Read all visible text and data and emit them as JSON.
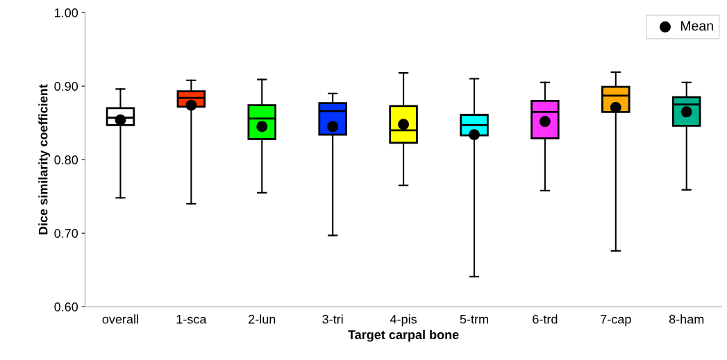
{
  "chart_data": {
    "type": "box",
    "xlabel": "Target carpal bone",
    "ylabel": "Dice similarity coefficient",
    "categories": [
      "overall",
      "1-sca",
      "2-lun",
      "3-tri",
      "4-pis",
      "5-trm",
      "6-trd",
      "7-cap",
      "8-ham"
    ],
    "colors": [
      "#ffffff",
      "#ff3300",
      "#00ff00",
      "#0033ff",
      "#ffff00",
      "#00ffff",
      "#ff33ff",
      "#ffaa00",
      "#00b38c"
    ],
    "boxes": [
      {
        "low": 0.748,
        "q1": 0.847,
        "median": 0.857,
        "q3": 0.87,
        "high": 0.896
      },
      {
        "low": 0.74,
        "q1": 0.872,
        "median": 0.884,
        "q3": 0.893,
        "high": 0.908
      },
      {
        "low": 0.755,
        "q1": 0.828,
        "median": 0.856,
        "q3": 0.874,
        "high": 0.909
      },
      {
        "low": 0.697,
        "q1": 0.834,
        "median": 0.866,
        "q3": 0.877,
        "high": 0.89
      },
      {
        "low": 0.765,
        "q1": 0.823,
        "median": 0.84,
        "q3": 0.873,
        "high": 0.918
      },
      {
        "low": 0.641,
        "q1": 0.833,
        "median": 0.847,
        "q3": 0.861,
        "high": 0.91
      },
      {
        "low": 0.758,
        "q1": 0.829,
        "median": 0.865,
        "q3": 0.88,
        "high": 0.905
      },
      {
        "low": 0.676,
        "q1": 0.865,
        "median": 0.887,
        "q3": 0.899,
        "high": 0.919
      },
      {
        "low": 0.759,
        "q1": 0.846,
        "median": 0.875,
        "q3": 0.885,
        "high": 0.905
      }
    ],
    "series": [
      {
        "name": "Mean",
        "type": "scatter",
        "color": "#000000",
        "x": [
          "overall",
          "1-sca",
          "2-lun",
          "3-tri",
          "4-pis",
          "5-trm",
          "6-trd",
          "7-cap",
          "8-ham"
        ],
        "values": [
          0.854,
          0.874,
          0.845,
          0.845,
          0.848,
          0.834,
          0.852,
          0.871,
          0.865
        ]
      }
    ],
    "ylim": [
      0.6,
      1.0
    ],
    "yticks": [
      {
        "value": 0.6,
        "label": "0.60"
      },
      {
        "value": 0.7,
        "label": "0.70"
      },
      {
        "value": 0.8,
        "label": "0.80"
      },
      {
        "value": 0.9,
        "label": "0.90"
      },
      {
        "value": 1.0,
        "label": "1.00"
      }
    ],
    "grid": false,
    "legend": "top right",
    "marker": "circle"
  }
}
